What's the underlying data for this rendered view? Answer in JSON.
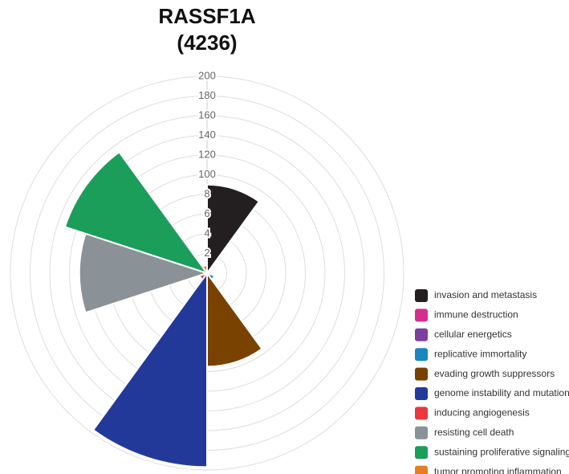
{
  "chart_data": {
    "type": "polar-area",
    "title": "RASSF1A",
    "subtitle": "(4236)",
    "categories": [
      "invasion and metastasis",
      "immune destruction",
      "cellular energetics",
      "replicative immortality",
      "evading growth suppressors",
      "genome instability and mutation",
      "inducing angiogenesis",
      "resisting cell death",
      "sustaining proliferative signaling",
      "tumor promoting inflammation"
    ],
    "values": [
      90,
      0,
      0,
      8,
      95,
      197,
      8,
      130,
      152,
      8
    ],
    "colors": [
      "#231f20",
      "#d62e8f",
      "#7b3f9e",
      "#1a87c1",
      "#7a4200",
      "#23399a",
      "#e8383d",
      "#8a9298",
      "#1a9e5a",
      "#e67e22"
    ],
    "rlim": [
      0,
      200
    ],
    "rticks": [
      {
        "value": 20,
        "label": "2"
      },
      {
        "value": 40,
        "label": "4"
      },
      {
        "value": 60,
        "label": "6"
      },
      {
        "value": 80,
        "label": "8"
      },
      100,
      120,
      140,
      160,
      180,
      200
    ],
    "grid": true
  }
}
